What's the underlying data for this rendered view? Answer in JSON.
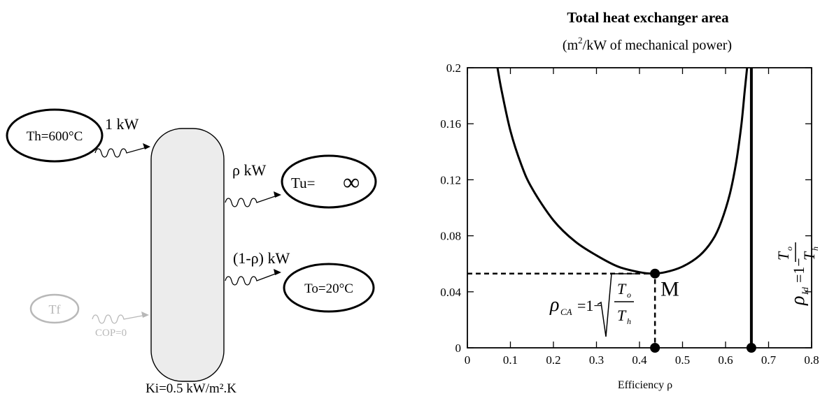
{
  "diagram": {
    "hot_source": "Th=600°C",
    "heat_in": "1 kW",
    "work_out": "ρ kW",
    "useful_sink": "Tu=",
    "useful_sink_symbol": "∞",
    "heat_out": "(1-ρ) kW",
    "cold_sink": "To=20°C",
    "cold_source": "Tf",
    "cop_label": "COP=0",
    "exchange_coefficient": "Ki=0.5 kW/m².K",
    "colors": {
      "engine_fill": "#ececec",
      "faded": "#b8b8b8",
      "ink": "#000000"
    }
  },
  "chart_data": {
    "type": "line",
    "title": "Total heat exchanger area",
    "subtitle": "(m²/kW of  mechanical power)",
    "xlabel": "Efficiency  ρ",
    "ylabel": "",
    "xlim": [
      0,
      0.8
    ],
    "ylim": [
      0,
      0.2
    ],
    "x_ticks": [
      "0",
      "0.1",
      "0.2",
      "0.3",
      "0.4",
      "0.5",
      "0.6",
      "0.7",
      "0.8"
    ],
    "y_ticks": [
      "0",
      "0.04",
      "0.08",
      "0.12",
      "0.16",
      "0.2"
    ],
    "grid": false,
    "series": [
      {
        "points": [
          [
            0.07,
            0.2
          ],
          [
            0.08,
            0.183
          ],
          [
            0.1,
            0.155
          ],
          [
            0.125,
            0.131
          ],
          [
            0.15,
            0.114
          ],
          [
            0.2,
            0.091
          ],
          [
            0.25,
            0.076
          ],
          [
            0.3,
            0.066
          ],
          [
            0.35,
            0.058
          ],
          [
            0.4,
            0.054
          ],
          [
            0.43,
            0.053
          ],
          [
            0.46,
            0.054
          ],
          [
            0.5,
            0.058
          ],
          [
            0.54,
            0.066
          ],
          [
            0.57,
            0.077
          ],
          [
            0.59,
            0.09
          ],
          [
            0.61,
            0.11
          ],
          [
            0.625,
            0.133
          ],
          [
            0.637,
            0.16
          ],
          [
            0.645,
            0.185
          ],
          [
            0.65,
            0.2
          ]
        ]
      }
    ],
    "vertical_line": {
      "x": 0.66,
      "label_lhs": "ρ",
      "label_sub": "Id",
      "label_rhs": "=1−",
      "frac_num": "T",
      "frac_num_sub": "o",
      "frac_den": "T",
      "frac_den_sub": "h"
    },
    "optimum": {
      "x": 0.436,
      "y": 0.053,
      "label": "M",
      "label_lhs": "ρ",
      "label_sub": "CA",
      "label_rhs": "=1−",
      "frac_num": "T",
      "frac_num_sub": "o",
      "frac_den": "T",
      "frac_den_sub": "h"
    }
  }
}
